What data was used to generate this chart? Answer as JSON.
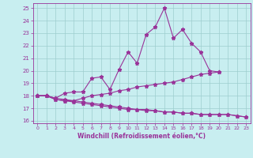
{
  "xlabel": "Windchill (Refroidissement éolien,°C)",
  "bg_color": "#c8eef0",
  "grid_color": "#9ecece",
  "line_color": "#993399",
  "x": [
    0,
    1,
    2,
    3,
    4,
    5,
    6,
    7,
    8,
    9,
    10,
    11,
    12,
    13,
    14,
    15,
    16,
    17,
    18,
    19,
    20,
    21,
    22,
    23
  ],
  "series1": [
    18.0,
    18.0,
    17.8,
    18.2,
    18.3,
    18.3,
    19.4,
    19.5,
    18.5,
    20.1,
    21.5,
    20.6,
    22.9,
    23.5,
    25.0,
    22.6,
    23.3,
    22.2,
    21.5,
    20.0,
    19.9,
    null,
    null,
    null
  ],
  "series2": [
    18.0,
    18.0,
    17.7,
    17.6,
    17.6,
    17.8,
    18.0,
    18.1,
    18.2,
    18.4,
    18.5,
    18.7,
    18.8,
    18.9,
    19.0,
    19.1,
    19.3,
    19.5,
    19.7,
    19.8,
    19.9,
    null,
    null,
    null
  ],
  "series3": [
    18.0,
    18.0,
    17.7,
    17.6,
    17.5,
    17.4,
    17.3,
    17.2,
    17.1,
    17.0,
    16.9,
    16.9,
    16.8,
    16.8,
    16.7,
    16.7,
    16.6,
    16.6,
    16.5,
    16.5,
    16.5,
    16.5,
    16.4,
    16.3
  ],
  "series4": [
    18.0,
    18.0,
    17.8,
    17.7,
    17.6,
    17.5,
    17.4,
    17.3,
    17.2,
    17.1,
    17.0,
    16.9,
    16.9,
    16.8,
    16.7,
    16.7,
    16.6,
    16.6,
    16.5,
    16.5,
    16.5,
    16.5,
    16.4,
    16.3
  ],
  "ylim": [
    15.8,
    25.4
  ],
  "xlim": [
    -0.5,
    23.5
  ],
  "yticks": [
    16,
    17,
    18,
    19,
    20,
    21,
    22,
    23,
    24,
    25
  ],
  "xticks": [
    0,
    1,
    2,
    3,
    4,
    5,
    6,
    7,
    8,
    9,
    10,
    11,
    12,
    13,
    14,
    15,
    16,
    17,
    18,
    19,
    20,
    21,
    22,
    23
  ]
}
